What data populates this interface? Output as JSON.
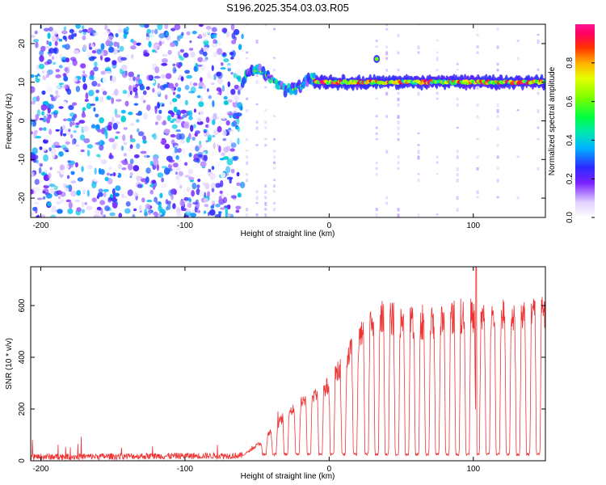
{
  "title": "S196.2025.354.03.03.R05",
  "chart_data": [
    {
      "type": "heatmap",
      "title": "S196.2025.354.03.03.R05",
      "xlabel": "Height of straight line (km)",
      "ylabel": "Frequency (Hz)",
      "xlim": [
        -207,
        150
      ],
      "ylim": [
        -25,
        25
      ],
      "xticks": [
        -200,
        -100,
        0,
        100
      ],
      "yticks": [
        -20,
        -10,
        0,
        10,
        20
      ],
      "colorbar": {
        "label": "Normalized spectral amplitude",
        "range": [
          0.0,
          1.0
        ],
        "ticks": [
          "0.0",
          "0.2",
          "0.4",
          "0.6",
          "0.8"
        ],
        "tick_values": [
          0.0,
          0.2,
          0.4,
          0.6,
          0.8
        ]
      },
      "regions": [
        {
          "name": "noise",
          "x_range": [
            -207,
            -60
          ],
          "freq_range": [
            -25,
            25
          ],
          "amplitude": [
            0.0,
            0.15
          ]
        },
        {
          "name": "tone-onset",
          "x_range": [
            -60,
            -10
          ],
          "freq_range": [
            6,
            16
          ],
          "amplitude": [
            0.2,
            0.8
          ]
        },
        {
          "name": "tone",
          "x_range": [
            -10,
            150
          ],
          "freq": 10,
          "amplitude": [
            0.4,
            1.0
          ]
        },
        {
          "name": "spike",
          "x": 33,
          "freq": 16,
          "amplitude": 0.6
        }
      ]
    },
    {
      "type": "line",
      "xlabel": "Height of straight line (km)",
      "ylabel": "SNR (10 * v/v)",
      "xlim": [
        -207,
        150
      ],
      "ylim": [
        0,
        750
      ],
      "xticks": [
        -200,
        -100,
        0,
        100
      ],
      "yticks": [
        0,
        200,
        400,
        600
      ],
      "series": [
        {
          "name": "SNR",
          "color": "#ee3333",
          "profile_x": [
            -207,
            -60,
            -45,
            -30,
            -15,
            0,
            15,
            25,
            35,
            50,
            70,
            90,
            110,
            130,
            150
          ],
          "profile_y": [
            15,
            20,
            80,
            180,
            240,
            290,
            420,
            500,
            560,
            540,
            530,
            560,
            555,
            560,
            565
          ],
          "dropouts_x": [
            -45,
            -38,
            -30,
            -22,
            -14,
            -6,
            2,
            10,
            18,
            26,
            33,
            40,
            47,
            54,
            61,
            68,
            75,
            82,
            89,
            96,
            103,
            110,
            117,
            124,
            131,
            138,
            145
          ],
          "dropout_floor": 20,
          "peak": {
            "x": 102,
            "y": 760
          }
        }
      ]
    }
  ]
}
